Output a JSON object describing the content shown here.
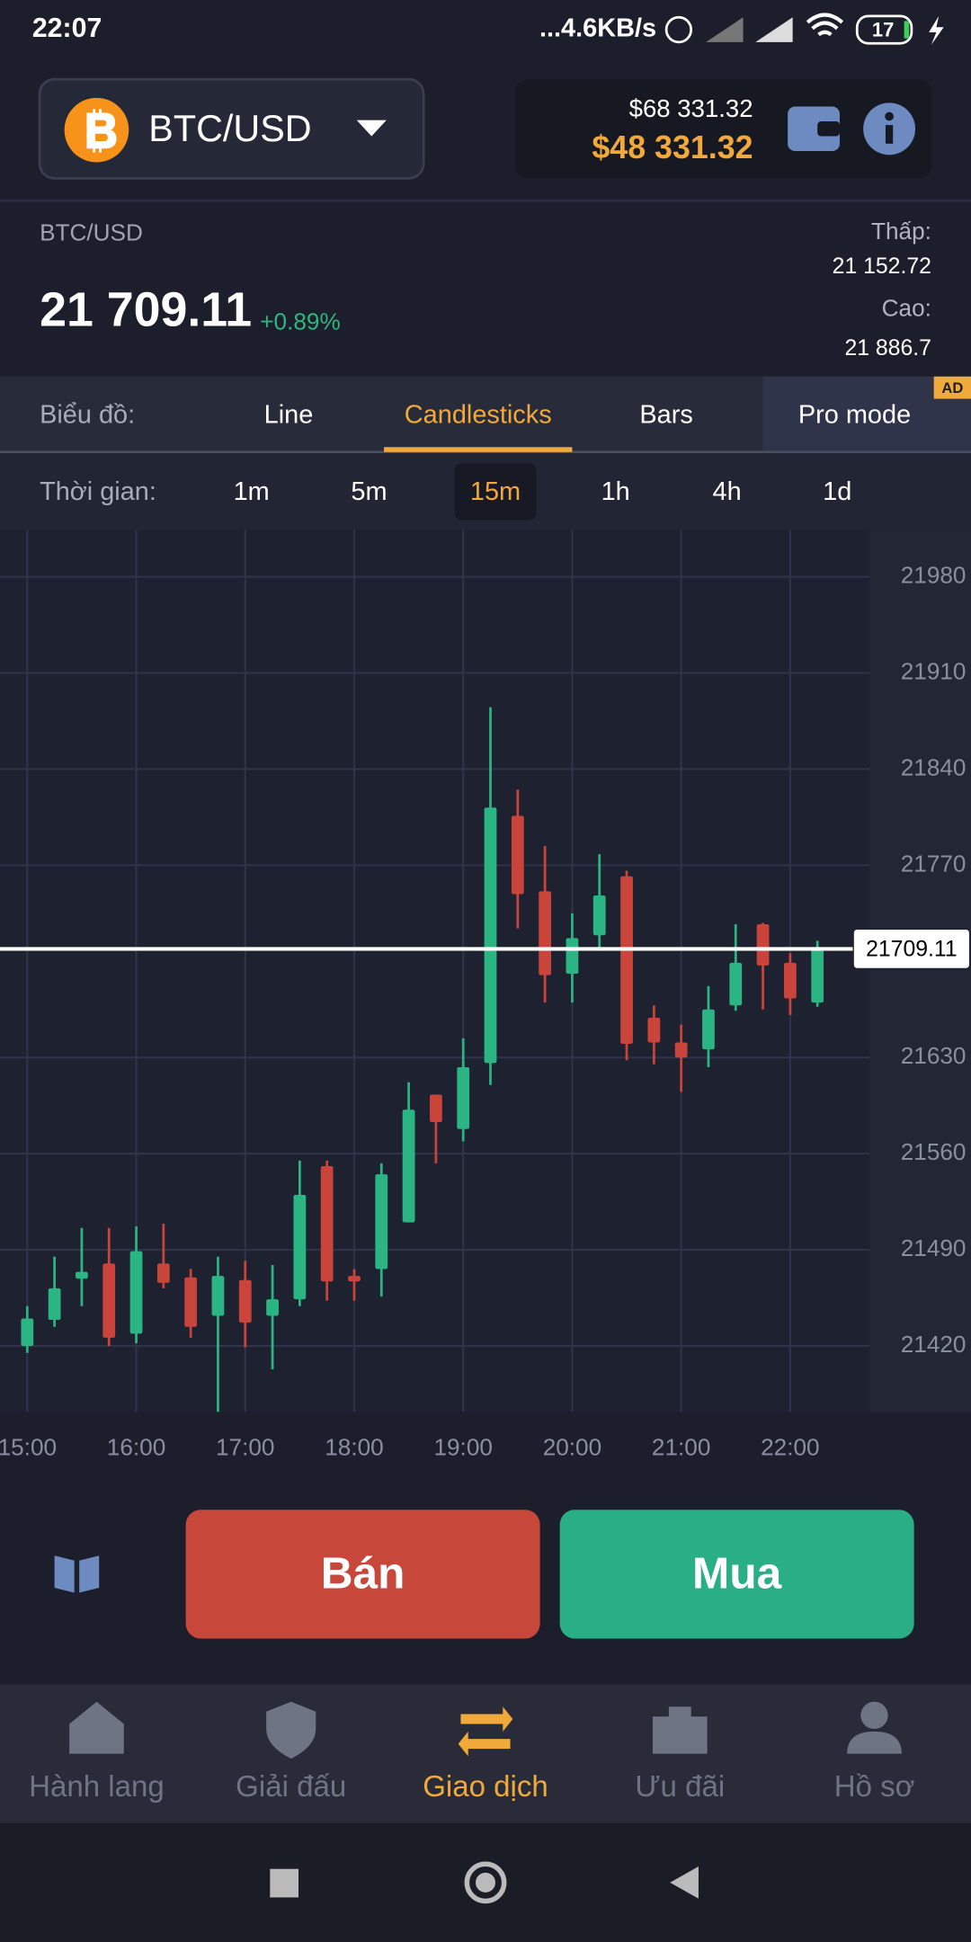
{
  "status_bar": {
    "time": "22:07",
    "network": "...4.6KB/s",
    "battery": "17"
  },
  "header": {
    "pair": "BTC/USD",
    "balance_real": "$68 331.32",
    "balance_demo": "$48 331.32"
  },
  "quote": {
    "pair": "BTC/USD",
    "price": "21 709.11",
    "change": "+0.89%",
    "low_label": "Thấp:",
    "low": "21 152.72",
    "high_label": "Cao:",
    "high": "21 886.7"
  },
  "chart_tabs": {
    "label": "Biểu đồ:",
    "items": [
      "Line",
      "Candlesticks",
      "Bars",
      "Pro mode"
    ],
    "active": 1,
    "badge": "AD"
  },
  "time_tabs": {
    "label": "Thời gian:",
    "items": [
      "1m",
      "5m",
      "15m",
      "1h",
      "4h",
      "1d"
    ],
    "active": 2
  },
  "chart_data": {
    "type": "candlestick",
    "categories": [
      "15:00",
      null,
      null,
      null,
      "16:00",
      null,
      null,
      null,
      "17:00",
      null,
      null,
      null,
      "18:00",
      null,
      null,
      null,
      "19:00",
      null,
      null,
      null,
      "20:00",
      null,
      null,
      null,
      "21:00",
      null,
      null,
      null,
      "22:00",
      null
    ],
    "open": [
      21420,
      21439,
      21469,
      21480,
      21429,
      21480,
      21470,
      21442,
      21468,
      21442,
      21454,
      21551,
      21471,
      21476,
      21510,
      21603,
      21578,
      21626,
      21806,
      21751,
      21691,
      21719,
      21762,
      21659,
      21641,
      21636,
      21668,
      21727,
      21699,
      21670
    ],
    "high": [
      21449,
      21485,
      21506,
      21506,
      21507,
      21509,
      21476,
      21485,
      21482,
      21479,
      21555,
      21555,
      21476,
      21553,
      21612,
      21603,
      21644,
      21885,
      21825,
      21784,
      21735,
      21778,
      21766,
      21668,
      21654,
      21682,
      21727,
      21728,
      21706,
      21715
    ],
    "low": [
      21415,
      21434,
      21449,
      21420,
      21422,
      21462,
      21426,
      21372,
      21419,
      21403,
      21449,
      21453,
      21453,
      21456,
      21510,
      21553,
      21569,
      21610,
      21724,
      21670,
      21670,
      21708,
      21628,
      21625,
      21605,
      21623,
      21664,
      21665,
      21661,
      21667
    ],
    "close": [
      21440,
      21462,
      21474,
      21426,
      21489,
      21466,
      21434,
      21471,
      21437,
      21454,
      21530,
      21467,
      21467,
      21545,
      21592,
      21583,
      21623,
      21812,
      21749,
      21690,
      21717,
      21748,
      21640,
      21641,
      21630,
      21665,
      21699,
      21697,
      21673,
      21709.11
    ],
    "up_color": "#2bb582",
    "down_color": "#c9443a",
    "current_value": 21709.11,
    "ylim": [
      21372,
      22014
    ],
    "yticks": [
      21420,
      21490,
      21560,
      21630,
      21770,
      21840,
      21910,
      21980
    ],
    "grid": true
  },
  "actions": {
    "sell": "Bán",
    "buy": "Mua"
  },
  "nav": {
    "items": [
      "Hành lang",
      "Giải đấu",
      "Giao dịch",
      "Ưu đãi",
      "Hồ sơ"
    ],
    "active": 2
  }
}
